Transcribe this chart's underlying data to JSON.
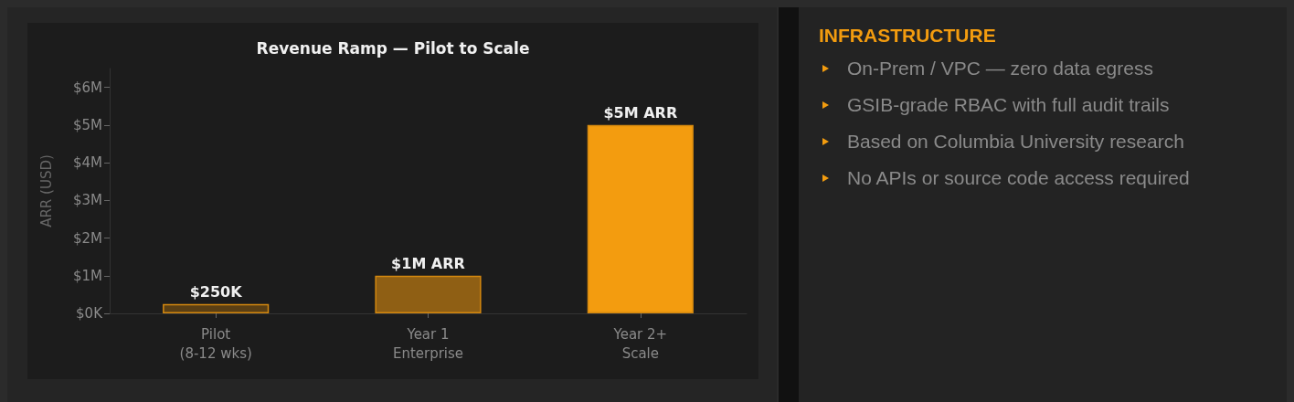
{
  "chart_data": [
    {
      "type": "bar",
      "title": "Revenue Ramp — Pilot to Scale",
      "ylabel": "ARR (USD)",
      "categories": [
        "Pilot\n(8-12 wks)",
        "Year 1\nEnterprise",
        "Year 2+\nScale"
      ],
      "values": [
        250000,
        1000000,
        5000000
      ],
      "colors": [
        "#5a3f14",
        "#8f5f14",
        "#f39c0f"
      ],
      "value_labels": [
        "$250K",
        "$1M ARR",
        "$5M ARR"
      ],
      "ylim": [
        0,
        6500000
      ],
      "yticks": [
        {
          "value": 0,
          "label": "$0K"
        },
        {
          "value": 1000000,
          "label": "$1M"
        },
        {
          "value": 2000000,
          "label": "$2M"
        },
        {
          "value": 3000000,
          "label": "$3M"
        },
        {
          "value": 4000000,
          "label": "$4M"
        },
        {
          "value": 5000000,
          "label": "$5M"
        },
        {
          "value": 6000000,
          "label": "$6M"
        }
      ]
    },
    {
      "type": "other",
      "title": "INFRASTRUCTURE",
      "annotations": [
        "On-Prem / VPC — zero data egress",
        "GSIB-grade RBAC with full audit trails",
        "Based on Columbia University research",
        "No APIs or source code access required"
      ]
    }
  ]
}
